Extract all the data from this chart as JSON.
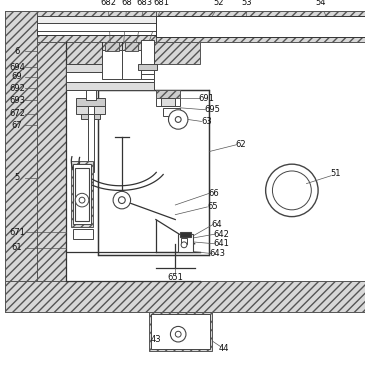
{
  "bg_color": "#ffffff",
  "hatch_color": "#888888",
  "line_color": "#333333",
  "figsize": [
    3.7,
    3.75
  ],
  "dpi": 100
}
